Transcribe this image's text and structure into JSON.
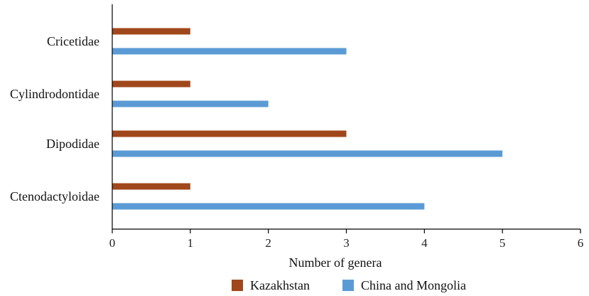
{
  "chart_data": {
    "type": "bar",
    "orientation": "horizontal",
    "categories": [
      "Cricetidae",
      "Cylindrodontidae",
      "Dipodidae",
      "Ctenodactyloidae"
    ],
    "series": [
      {
        "name": "Kazakhstan",
        "color": "#a0471b",
        "values": [
          1,
          1,
          3,
          1
        ]
      },
      {
        "name": "China and Mongolia",
        "color": "#5b9bd5",
        "values": [
          3,
          2,
          5,
          4
        ]
      }
    ],
    "xlabel": "Number of genera",
    "ylabel": "",
    "xlim": [
      0,
      6
    ],
    "xticks": [
      "0",
      "1",
      "2",
      "3",
      "4",
      "5",
      "6"
    ],
    "grid": false,
    "legend_position": "bottom"
  }
}
